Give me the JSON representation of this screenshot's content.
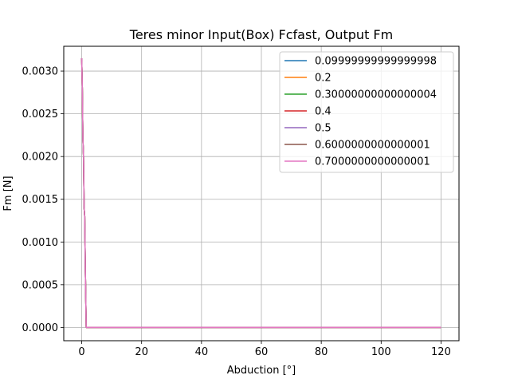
{
  "chart_data": {
    "type": "line",
    "title": "Teres minor Input(Box) Fcfast, Output Fm",
    "xlabel": "Abduction [°]",
    "ylabel": "Fm [N]",
    "xlim": [
      -6,
      126
    ],
    "ylim": [
      -0.000155,
      0.00329
    ],
    "x_ticks": [
      0,
      20,
      40,
      60,
      80,
      100,
      120
    ],
    "x_tick_labels": [
      "0",
      "20",
      "40",
      "60",
      "80",
      "100",
      "120"
    ],
    "y_ticks": [
      0,
      0.0005,
      0.001,
      0.0015,
      0.002,
      0.0025,
      0.003
    ],
    "y_tick_labels": [
      "0.0000",
      "0.0005",
      "0.0010",
      "0.0015",
      "0.0020",
      "0.0025",
      "0.0030"
    ],
    "grid": true,
    "legend_position": "top-right",
    "series": [
      {
        "name": "0.09999999999999998",
        "color": "#1f77b4",
        "x": [
          0,
          0.2,
          0.4,
          0.6,
          0.8,
          1.0,
          1.2,
          1.5,
          2,
          120
        ],
        "y": [
          0.00315,
          0.0028,
          0.0022,
          0.002,
          0.0014,
          0.0013,
          0.0007,
          0.0,
          0.0,
          0.0
        ]
      },
      {
        "name": "0.2",
        "color": "#ff7f0e",
        "x": [
          0,
          0.2,
          0.4,
          0.6,
          0.8,
          1.0,
          1.2,
          1.5,
          2,
          120
        ],
        "y": [
          0.00315,
          0.0028,
          0.0022,
          0.002,
          0.0014,
          0.0013,
          0.0007,
          0.0,
          0.0,
          0.0
        ]
      },
      {
        "name": "0.30000000000000004",
        "color": "#2ca02c",
        "x": [
          0,
          0.2,
          0.4,
          0.6,
          0.8,
          1.0,
          1.2,
          1.5,
          2,
          120
        ],
        "y": [
          0.00315,
          0.0028,
          0.0022,
          0.002,
          0.0014,
          0.0013,
          0.0007,
          0.0,
          0.0,
          0.0
        ]
      },
      {
        "name": "0.4",
        "color": "#d62728",
        "x": [
          0,
          0.2,
          0.4,
          0.6,
          0.8,
          1.0,
          1.2,
          1.5,
          2,
          120
        ],
        "y": [
          0.00315,
          0.0028,
          0.0022,
          0.002,
          0.0014,
          0.0013,
          0.0007,
          0.0,
          0.0,
          0.0
        ]
      },
      {
        "name": "0.5",
        "color": "#9467bd",
        "x": [
          0,
          0.2,
          0.4,
          0.6,
          0.8,
          1.0,
          1.2,
          1.5,
          2,
          120
        ],
        "y": [
          0.00315,
          0.0028,
          0.0022,
          0.002,
          0.0014,
          0.0013,
          0.0007,
          0.0,
          0.0,
          0.0
        ]
      },
      {
        "name": "0.6000000000000001",
        "color": "#8c564b",
        "x": [
          0,
          0.2,
          0.4,
          0.6,
          0.8,
          1.0,
          1.2,
          1.5,
          2,
          120
        ],
        "y": [
          0.00315,
          0.0028,
          0.0022,
          0.002,
          0.0014,
          0.0013,
          0.0007,
          0.0,
          0.0,
          0.0
        ]
      },
      {
        "name": "0.7000000000000001",
        "color": "#e377c2",
        "x": [
          0,
          0.2,
          0.4,
          0.6,
          0.8,
          1.0,
          1.2,
          1.5,
          2,
          120
        ],
        "y": [
          0.00315,
          0.0028,
          0.0022,
          0.002,
          0.0014,
          0.0013,
          0.0007,
          0.0,
          0.0,
          0.0
        ]
      }
    ]
  }
}
